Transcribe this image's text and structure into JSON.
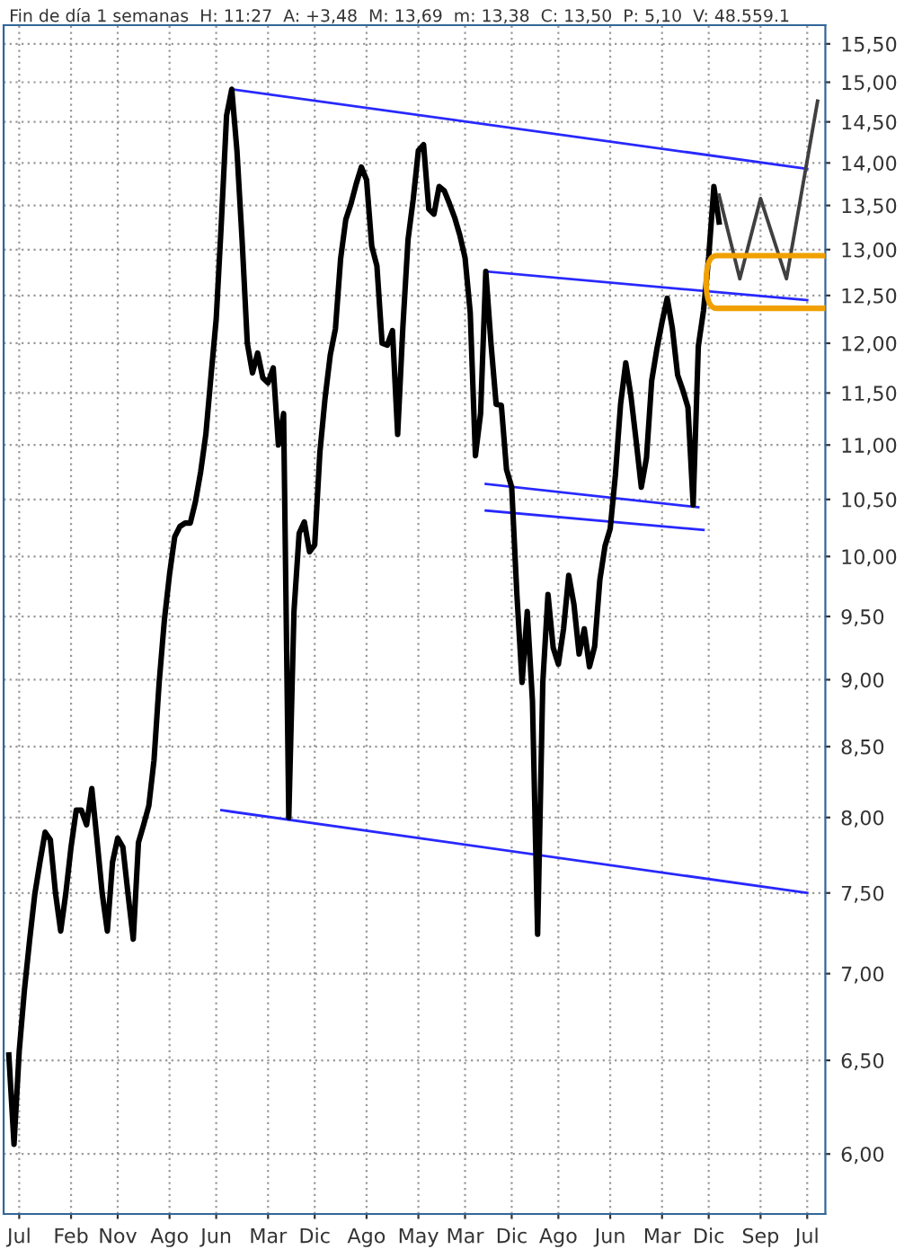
{
  "chart_data": {
    "type": "line",
    "subtitle": "Fin de día 1 semanas  H: 11:27  A: +3,48  M: 13,69  m: 13,38  C: 13,50  P: 5,10  V: 48.559.1",
    "categories": [
      null,
      null,
      "Jul",
      null,
      null,
      null,
      null,
      null,
      null,
      null,
      null,
      null,
      "Feb",
      null,
      null,
      null,
      null,
      null,
      null,
      null,
      null,
      "Nov",
      null,
      null,
      null,
      null,
      null,
      null,
      null,
      null,
      null,
      "Ago",
      null,
      null,
      null,
      null,
      null,
      null,
      null,
      null,
      "Jun",
      null,
      null,
      null,
      null,
      null,
      null,
      null,
      null,
      null,
      "Mar",
      null,
      null,
      null,
      null,
      null,
      null,
      null,
      null,
      "Dic",
      null,
      null,
      null,
      null,
      null,
      null,
      null,
      null,
      null,
      "Ago",
      null,
      null,
      null,
      null,
      null,
      null,
      null,
      null,
      null,
      "May",
      null,
      null,
      null,
      null,
      null,
      null,
      null,
      null,
      "Mar",
      null,
      null,
      null,
      null,
      null,
      null,
      null,
      null,
      "Dic",
      null,
      null,
      null,
      null,
      null,
      null,
      null,
      null,
      "Ago",
      null,
      null,
      null,
      null,
      null,
      null,
      null,
      null,
      null,
      "Jun",
      null,
      null,
      null,
      null,
      null,
      null,
      null,
      null,
      null,
      "Mar",
      null,
      null,
      null,
      null,
      null,
      null,
      null,
      null,
      "Dic",
      null,
      null,
      null,
      null,
      null,
      null,
      null,
      null,
      null,
      "Sep",
      null,
      null,
      null,
      null,
      null,
      null,
      null,
      null,
      "Jul",
      null,
      null,
      null
    ],
    "log": "y",
    "ylim": [
      5.7,
      15.75
    ],
    "yticks": [
      {
        "value": 6,
        "label": "6,00"
      },
      {
        "value": 6.5,
        "label": "6,50"
      },
      {
        "value": 7,
        "label": "7,00"
      },
      {
        "value": 7.5,
        "label": "7,50"
      },
      {
        "value": 8,
        "label": "8,00"
      },
      {
        "value": 8.5,
        "label": "8,50"
      },
      {
        "value": 9,
        "label": "9,00"
      },
      {
        "value": 9.5,
        "label": "9,50"
      },
      {
        "value": 10,
        "label": "10,00"
      },
      {
        "value": 10.5,
        "label": "10,50"
      },
      {
        "value": 11,
        "label": "11,00"
      },
      {
        "value": 11.5,
        "label": "11,50"
      },
      {
        "value": 12,
        "label": "12,00"
      },
      {
        "value": 12.5,
        "label": "12,50"
      },
      {
        "value": 13,
        "label": "13,00"
      },
      {
        "value": 13.5,
        "label": "13,50"
      },
      {
        "value": 14,
        "label": "14,00"
      },
      {
        "value": 14.5,
        "label": "14,50"
      },
      {
        "value": 15,
        "label": "15,00"
      },
      {
        "value": 15.5,
        "label": "15,50"
      }
    ],
    "grid": true,
    "series": [
      {
        "color": "#000000",
        "values": [
          6.53,
          6.05,
          6.55,
          6.9,
          7.2,
          7.49,
          7.7,
          7.9,
          7.85,
          7.5,
          7.26,
          7.5,
          7.8,
          8.05,
          8.05,
          7.95,
          8.2,
          7.85,
          7.5,
          7.26,
          7.7,
          7.86,
          7.8,
          7.49,
          7.21,
          7.83,
          7.95,
          8.08,
          8.4,
          8.98,
          9.47,
          9.85,
          10.17,
          10.26,
          10.29,
          10.29,
          10.48,
          10.75,
          11.1,
          11.67,
          12.25,
          13.31,
          14.58,
          14.91,
          14.15,
          13.1,
          12.0,
          11.7,
          11.9,
          11.65,
          11.6,
          11.75,
          11.0,
          11.3,
          8.0,
          9.54,
          10.2,
          10.3,
          10.04,
          10.1,
          10.93,
          11.45,
          11.88,
          12.15,
          12.9,
          13.34,
          13.52,
          13.75,
          13.95,
          13.8,
          13.04,
          12.82,
          12.0,
          11.98,
          12.13,
          11.1,
          12.16,
          13.11,
          13.57,
          14.15,
          14.22,
          13.46,
          13.4,
          13.72,
          13.67,
          13.52,
          13.36,
          13.16,
          12.91,
          12.32,
          10.9,
          11.3,
          12.76,
          12.0,
          11.39,
          11.38,
          10.77,
          10.61,
          9.68,
          8.98,
          9.54,
          8.84,
          7.24,
          8.98,
          9.68,
          9.25,
          9.12,
          9.4,
          9.84,
          9.6,
          9.2,
          9.4,
          9.1,
          9.26,
          9.8,
          10.09,
          10.24,
          10.72,
          11.39,
          11.8,
          11.47,
          11.04,
          10.61,
          10.88,
          11.62,
          11.94,
          12.22,
          12.47,
          12.15,
          11.68,
          11.53,
          11.36,
          10.45,
          11.97,
          12.34,
          12.92,
          13.72,
          13.31,
          null,
          null,
          null,
          null,
          null,
          null,
          null,
          null,
          null,
          null,
          null,
          null,
          null,
          null,
          null,
          null,
          null,
          null,
          null,
          null
        ]
      },
      {
        "color": "#404040",
        "values": [
          null,
          null,
          null,
          null,
          null,
          null,
          null,
          null,
          null,
          null,
          null,
          null,
          null,
          null,
          null,
          null,
          null,
          null,
          null,
          null,
          null,
          null,
          null,
          null,
          null,
          null,
          null,
          null,
          null,
          null,
          null,
          null,
          null,
          null,
          null,
          null,
          null,
          null,
          null,
          null,
          null,
          null,
          null,
          null,
          null,
          null,
          null,
          null,
          null,
          null,
          null,
          null,
          null,
          null,
          null,
          null,
          null,
          null,
          null,
          null,
          null,
          null,
          null,
          null,
          null,
          null,
          null,
          null,
          null,
          null,
          null,
          null,
          null,
          null,
          null,
          null,
          null,
          null,
          null,
          null,
          null,
          null,
          null,
          null,
          null,
          null,
          null,
          null,
          null,
          null,
          null,
          null,
          null,
          null,
          null,
          null,
          null,
          null,
          null,
          null,
          null,
          null,
          null,
          null,
          null,
          null,
          null,
          null,
          null,
          null,
          null,
          null,
          null,
          null,
          null,
          null,
          null,
          null,
          null,
          null,
          null,
          null,
          null,
          null,
          null,
          null,
          null,
          null,
          null,
          null,
          null,
          null,
          null,
          null,
          null,
          null,
          null,
          13.62,
          null,
          null,
          null,
          12.68,
          null,
          null,
          null,
          13.58,
          null,
          null,
          null,
          null,
          12.68,
          null,
          null,
          null,
          null,
          null,
          14.76,
          null
        ]
      },
      {
        "color": "#2828ff",
        "values": [
          null,
          null,
          null,
          null,
          null,
          null,
          null,
          null,
          null,
          null,
          null,
          null,
          null,
          null,
          null,
          null,
          null,
          null,
          null,
          null,
          null,
          null,
          null,
          null,
          null,
          null,
          null,
          null,
          null,
          null,
          null,
          null,
          null,
          null,
          null,
          null,
          null,
          null,
          null,
          null,
          null,
          null,
          null,
          14.91,
          null,
          null,
          null,
          null,
          null,
          null,
          null,
          null,
          null,
          null,
          null,
          null,
          null,
          null,
          null,
          null,
          null,
          null,
          null,
          null,
          null,
          null,
          null,
          null,
          null,
          null,
          null,
          null,
          null,
          null,
          null,
          null,
          null,
          null,
          null,
          null,
          null,
          null,
          null,
          null,
          null,
          null,
          null,
          null,
          null,
          null,
          null,
          null,
          null,
          null,
          null,
          null,
          null,
          null,
          null,
          null,
          null,
          null,
          null,
          null,
          null,
          null,
          null,
          null,
          null,
          null,
          null,
          null,
          null,
          null,
          null,
          null,
          null,
          null,
          null,
          null,
          null,
          null,
          null,
          null,
          null,
          null,
          null,
          null,
          null,
          null,
          null,
          null,
          null,
          null,
          null,
          null,
          null,
          null,
          null,
          null,
          null,
          null,
          null,
          null,
          null,
          null,
          null,
          null,
          null,
          null,
          null,
          null,
          null,
          null,
          13.93,
          null,
          null,
          null
        ]
      },
      {
        "color": "#2828ff",
        "values": [
          null,
          null,
          null,
          null,
          null,
          null,
          null,
          null,
          null,
          null,
          null,
          null,
          null,
          null,
          null,
          null,
          null,
          null,
          null,
          null,
          null,
          null,
          null,
          null,
          null,
          null,
          null,
          null,
          null,
          null,
          null,
          null,
          null,
          null,
          null,
          null,
          null,
          null,
          null,
          null,
          null,
          null,
          null,
          null,
          null,
          null,
          null,
          null,
          null,
          null,
          null,
          null,
          null,
          null,
          null,
          null,
          null,
          null,
          null,
          null,
          null,
          null,
          null,
          null,
          null,
          null,
          null,
          null,
          null,
          null,
          null,
          null,
          null,
          null,
          null,
          null,
          null,
          null,
          null,
          null,
          null,
          null,
          null,
          null,
          null,
          null,
          null,
          null,
          null,
          null,
          null,
          null,
          12.76,
          null,
          null,
          null,
          null,
          null,
          null,
          null,
          null,
          null,
          null,
          null,
          null,
          null,
          null,
          null,
          null,
          null,
          null,
          null,
          null,
          null,
          null,
          null,
          null,
          null,
          null,
          null,
          null,
          null,
          null,
          null,
          null,
          null,
          null,
          null,
          null,
          null,
          null,
          null,
          null,
          null,
          null,
          null,
          null,
          null,
          null,
          null,
          null,
          null,
          null,
          null,
          null,
          null,
          null,
          null,
          null,
          null,
          null,
          null,
          null,
          null,
          12.45,
          null,
          null,
          null
        ]
      },
      {
        "color": "#2828ff",
        "values": [
          null,
          null,
          null,
          null,
          null,
          null,
          null,
          null,
          null,
          null,
          null,
          null,
          null,
          null,
          null,
          null,
          null,
          null,
          null,
          null,
          null,
          null,
          null,
          null,
          null,
          null,
          null,
          null,
          null,
          null,
          null,
          null,
          null,
          null,
          null,
          null,
          null,
          null,
          null,
          null,
          null,
          null,
          null,
          null,
          null,
          null,
          null,
          null,
          null,
          null,
          null,
          null,
          null,
          null,
          null,
          null,
          null,
          null,
          null,
          null,
          null,
          null,
          null,
          null,
          null,
          null,
          null,
          null,
          null,
          null,
          null,
          null,
          null,
          null,
          null,
          null,
          null,
          null,
          null,
          null,
          null,
          null,
          null,
          null,
          null,
          null,
          null,
          null,
          null,
          null,
          null,
          null,
          10.64,
          null,
          null,
          null,
          null,
          null,
          null,
          null,
          null,
          null,
          null,
          null,
          null,
          null,
          null,
          null,
          null,
          null,
          null,
          null,
          null,
          null,
          null,
          null,
          null,
          null,
          null,
          null,
          null,
          null,
          null,
          null,
          null,
          null,
          null,
          null,
          null,
          null,
          null,
          null,
          null,
          10.43,
          null,
          null,
          null,
          null,
          null,
          null,
          null,
          null,
          null,
          null,
          null,
          null,
          null,
          null,
          null,
          null,
          null,
          null,
          null,
          null,
          null,
          null,
          null,
          null
        ]
      },
      {
        "color": "#2828ff",
        "values": [
          null,
          null,
          null,
          null,
          null,
          null,
          null,
          null,
          null,
          null,
          null,
          null,
          null,
          null,
          null,
          null,
          null,
          null,
          null,
          null,
          null,
          null,
          null,
          null,
          null,
          null,
          null,
          null,
          null,
          null,
          null,
          null,
          null,
          null,
          null,
          null,
          null,
          null,
          null,
          null,
          null,
          null,
          null,
          null,
          null,
          null,
          null,
          null,
          null,
          null,
          null,
          null,
          null,
          null,
          null,
          null,
          null,
          null,
          null,
          null,
          null,
          null,
          null,
          null,
          null,
          null,
          null,
          null,
          null,
          null,
          null,
          null,
          null,
          null,
          null,
          null,
          null,
          null,
          null,
          null,
          null,
          null,
          null,
          null,
          null,
          null,
          null,
          null,
          null,
          null,
          null,
          null,
          10.4,
          null,
          null,
          null,
          null,
          null,
          null,
          null,
          null,
          null,
          null,
          null,
          null,
          null,
          null,
          null,
          null,
          null,
          null,
          null,
          null,
          null,
          null,
          null,
          null,
          null,
          null,
          null,
          null,
          null,
          null,
          null,
          null,
          null,
          null,
          null,
          null,
          null,
          null,
          null,
          null,
          null,
          10.23,
          null,
          null,
          null,
          null,
          null,
          null,
          null,
          null,
          null,
          null,
          null,
          null,
          null,
          null,
          null,
          null,
          null,
          null,
          null,
          null,
          null,
          null,
          null
        ]
      },
      {
        "color": "#2828ff",
        "values": [
          null,
          null,
          null,
          null,
          null,
          null,
          null,
          null,
          null,
          null,
          null,
          null,
          null,
          null,
          null,
          null,
          null,
          null,
          null,
          null,
          null,
          null,
          null,
          null,
          null,
          null,
          null,
          null,
          null,
          null,
          null,
          null,
          null,
          null,
          null,
          null,
          null,
          null,
          null,
          null,
          null,
          8.05,
          null,
          null,
          null,
          null,
          null,
          null,
          null,
          null,
          null,
          null,
          null,
          null,
          null,
          null,
          null,
          null,
          null,
          null,
          null,
          null,
          null,
          null,
          null,
          null,
          null,
          null,
          null,
          null,
          null,
          null,
          null,
          null,
          null,
          null,
          null,
          null,
          null,
          null,
          null,
          null,
          null,
          null,
          null,
          null,
          null,
          null,
          null,
          null,
          null,
          null,
          null,
          null,
          null,
          null,
          null,
          null,
          null,
          null,
          null,
          null,
          null,
          null,
          null,
          null,
          null,
          null,
          null,
          null,
          null,
          null,
          null,
          null,
          null,
          null,
          null,
          null,
          null,
          null,
          null,
          null,
          null,
          null,
          null,
          null,
          null,
          null,
          null,
          null,
          null,
          null,
          null,
          null,
          null,
          null,
          null,
          null,
          null,
          null,
          null,
          null,
          null,
          null,
          null,
          null,
          null,
          null,
          null,
          null,
          null,
          null,
          null,
          null,
          7.5,
          null,
          null,
          null
        ]
      }
    ]
  }
}
